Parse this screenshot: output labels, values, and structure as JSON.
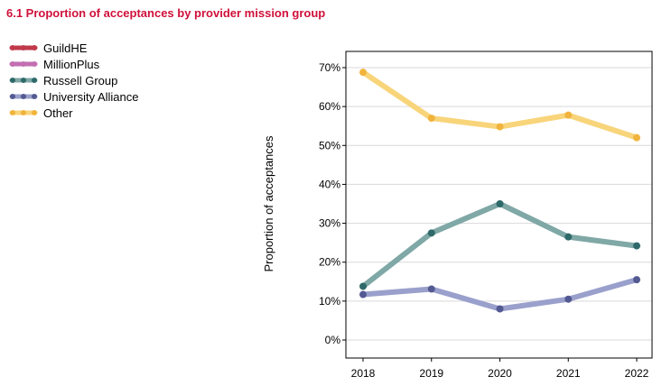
{
  "chart_data": {
    "type": "line",
    "title": "6.1 Proportion of acceptances by provider mission group",
    "ylabel": "Proportion of acceptances",
    "xlabel": "",
    "x": [
      "2018",
      "2019",
      "2020",
      "2021",
      "2022"
    ],
    "ylim": [
      0,
      70
    ],
    "yticks": [
      0,
      10,
      20,
      30,
      40,
      50,
      60,
      70
    ],
    "ytick_labels": [
      "0%",
      "10%",
      "20%",
      "30%",
      "40%",
      "50%",
      "60%",
      "70%"
    ],
    "grid": true,
    "legend_position": "top-left",
    "series": [
      {
        "name": "GuildHE",
        "color": "#c0394b",
        "values": [
          null,
          null,
          null,
          null,
          null
        ]
      },
      {
        "name": "MillionPlus",
        "color": "#c36fb2",
        "values": [
          null,
          null,
          null,
          null,
          null
        ]
      },
      {
        "name": "Russell Group",
        "color": "#2f6a6a",
        "line_color": "#7fa8a6",
        "values": [
          13.8,
          27.5,
          35.0,
          26.5,
          24.2
        ]
      },
      {
        "name": "University Alliance",
        "color": "#535a92",
        "line_color": "#9aa0cc",
        "values": [
          11.7,
          13.1,
          8.0,
          10.5,
          15.5
        ]
      },
      {
        "name": "Other",
        "color": "#f0b43c",
        "line_color": "#f8d47a",
        "values": [
          68.8,
          57.0,
          54.8,
          57.8,
          52.0
        ]
      }
    ]
  }
}
